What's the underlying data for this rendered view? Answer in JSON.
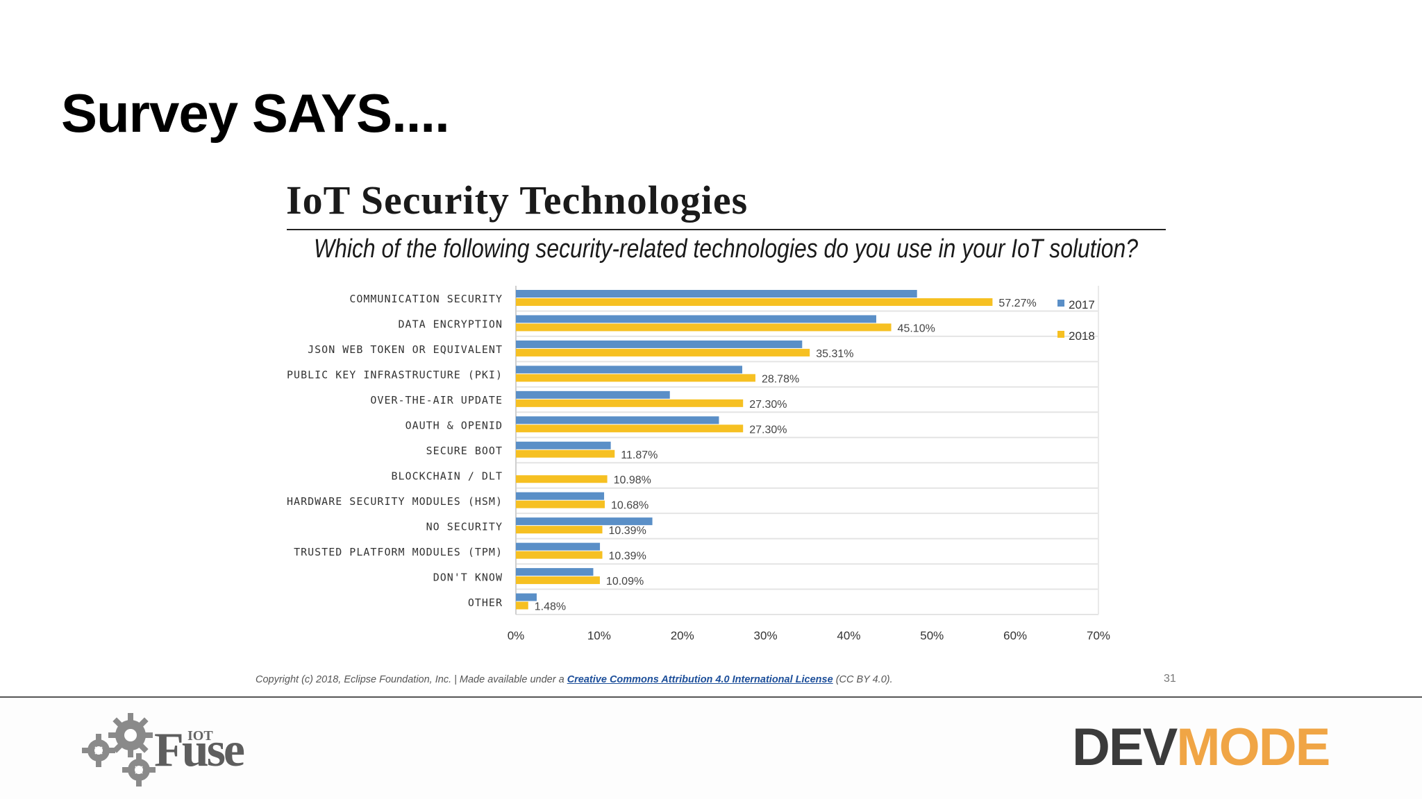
{
  "slide": {
    "title": "Survey SAYS....",
    "page_number": "31",
    "copyright_prefix": "Copyright (c) 2018, Eclipse Foundation, Inc. | Made available under a ",
    "copyright_link": "Creative Commons Attribution 4.0 International License",
    "copyright_suffix": " (CC BY 4.0).",
    "logo_left_small": "IOT",
    "logo_left": "Fuse",
    "logo_right_dev": "DEV",
    "logo_right_mode": "MODE"
  },
  "colors": {
    "series_2017": "#5a8fc7",
    "series_2018": "#f6c022",
    "grid": "#e4e4e4"
  },
  "chart_data": {
    "type": "bar",
    "orientation": "horizontal",
    "title": "IoT Security Technologies",
    "subtitle": "Which of the following security-related technologies do you use in your IoT solution?",
    "categories": [
      "COMMUNICATION SECURITY",
      "DATA ENCRYPTION",
      "JSON WEB TOKEN OR EQUIVALENT",
      "PUBLIC KEY INFRASTRUCTURE (PKI)",
      "OVER-THE-AIR UPDATE",
      "OAUTH & OPENID",
      "SECURE BOOT",
      "BLOCKCHAIN / DLT",
      "HARDWARE SECURITY MODULES (HSM)",
      "NO SECURITY",
      "TRUSTED PLATFORM MODULES (TPM)",
      "DON'T KNOW",
      "OTHER"
    ],
    "series": [
      {
        "name": "2017",
        "values": [
          48.2,
          43.3,
          34.4,
          27.2,
          18.5,
          24.4,
          11.4,
          0,
          10.6,
          16.4,
          10.1,
          9.3,
          2.5
        ]
      },
      {
        "name": "2018",
        "values": [
          57.27,
          45.1,
          35.31,
          28.78,
          27.3,
          27.3,
          11.87,
          10.98,
          10.68,
          10.39,
          10.39,
          10.09,
          1.48
        ]
      }
    ],
    "data_labels": [
      "57.27%",
      "45.10%",
      "35.31%",
      "28.78%",
      "27.30%",
      "27.30%",
      "11.87%",
      "10.98%",
      "10.68%",
      "10.39%",
      "10.39%",
      "10.09%",
      "1.48%"
    ],
    "xticks": [
      "0%",
      "10%",
      "20%",
      "30%",
      "40%",
      "50%",
      "60%",
      "70%"
    ],
    "xlim": [
      0,
      70
    ],
    "grid": true,
    "legend_position": "top-right"
  }
}
